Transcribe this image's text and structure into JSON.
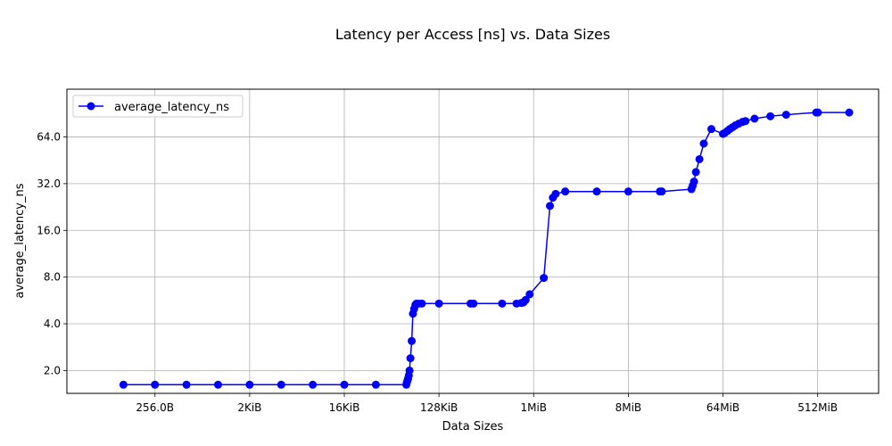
{
  "chart_data": {
    "type": "line",
    "title": "Latency per Access [ns] vs. Data Sizes",
    "xlabel": "Data Sizes",
    "ylabel": "average_latency_ns",
    "x_scale": "log2",
    "y_scale": "log2",
    "xlim": [
      37,
      2048000000
    ],
    "ylim": [
      1.425,
      130
    ],
    "grid": true,
    "legend_position": "upper left",
    "line_color": "#0000ff",
    "x_ticks": [
      {
        "value": 256,
        "label": "256.0B"
      },
      {
        "value": 2048,
        "label": "2KiB"
      },
      {
        "value": 16384,
        "label": "16KiB"
      },
      {
        "value": 131072,
        "label": "128KiB"
      },
      {
        "value": 1048576,
        "label": "1MiB"
      },
      {
        "value": 8388608,
        "label": "8MiB"
      },
      {
        "value": 67108864,
        "label": "64MiB"
      },
      {
        "value": 536870912,
        "label": "512MiB"
      }
    ],
    "y_ticks": [
      {
        "value": 2,
        "label": "2.0"
      },
      {
        "value": 4,
        "label": "4.0"
      },
      {
        "value": 8,
        "label": "8.0"
      },
      {
        "value": 16,
        "label": "16.0"
      },
      {
        "value": 32,
        "label": "32.0"
      },
      {
        "value": 64,
        "label": "64.0"
      }
    ],
    "series": [
      {
        "name": "average_latency_ns",
        "x": [
          128,
          256,
          512,
          1024,
          2048,
          4096,
          8192,
          16384,
          32768,
          64000,
          64512,
          65536,
          66560,
          67584,
          68608,
          70000,
          72000,
          74000,
          76000,
          78000,
          80000,
          84000,
          90000,
          131072,
          262144,
          280000,
          524288,
          720000,
          800000,
          840000,
          880000,
          960000,
          1310720,
          1500000,
          1600000,
          1700000,
          2097152,
          4194304,
          8388608,
          16777216,
          17500000,
          33554432,
          34500000,
          35500000,
          37000000,
          40000000,
          44000000,
          52000000,
          67108864,
          70000000,
          74000000,
          78000000,
          83000000,
          88000000,
          95000000,
          103000000,
          110000000,
          134217728,
          190000000,
          268435456,
          520000000,
          540000000,
          1073741824
        ],
        "values": [
          1.62,
          1.62,
          1.62,
          1.62,
          1.62,
          1.62,
          1.62,
          1.62,
          1.62,
          1.62,
          1.66,
          1.72,
          1.78,
          1.86,
          2.0,
          2.4,
          3.1,
          4.65,
          5.0,
          5.3,
          5.4,
          5.4,
          5.4,
          5.4,
          5.4,
          5.4,
          5.4,
          5.4,
          5.45,
          5.5,
          5.7,
          6.2,
          7.9,
          23.0,
          26.0,
          27.5,
          28.5,
          28.5,
          28.5,
          28.5,
          28.5,
          29.5,
          31.0,
          33.0,
          38.0,
          46.0,
          58.0,
          72.0,
          67.0,
          68.0,
          70.0,
          72.0,
          74.0,
          76.0,
          78.0,
          80.0,
          81.0,
          84.0,
          87.0,
          89.0,
          92.0,
          92.0,
          92.0
        ]
      }
    ]
  }
}
